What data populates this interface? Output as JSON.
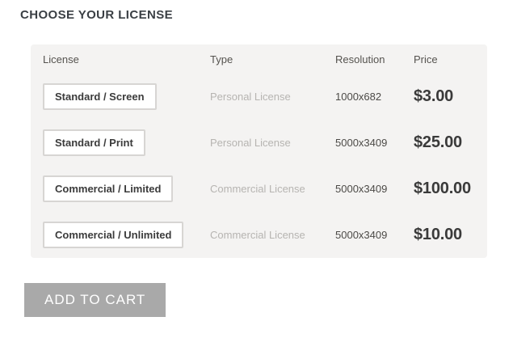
{
  "page": {
    "title": "CHOOSE YOUR LICENSE"
  },
  "table": {
    "headers": {
      "license": "License",
      "type": "Type",
      "resolution": "Resolution",
      "price": "Price"
    },
    "rows": [
      {
        "license": "Standard / Screen",
        "type": "Personal License",
        "resolution": "1000x682",
        "price": "$3.00"
      },
      {
        "license": "Standard / Print",
        "type": "Personal License",
        "resolution": "5000x3409",
        "price": "$25.00"
      },
      {
        "license": "Commercial / Limited",
        "type": "Commercial License",
        "resolution": "5000x3409",
        "price": "$100.00"
      },
      {
        "license": "Commercial / Unlimited",
        "type": "Commercial License",
        "resolution": "5000x3409",
        "price": "$10.00"
      }
    ]
  },
  "actions": {
    "add_to_cart": "ADD TO CART"
  },
  "colors": {
    "panel_bg": "#f4f3f2",
    "button_border": "#d7d5d3",
    "muted_text": "#b6b4b1",
    "dark_text": "#3a3a3a",
    "header_text": "#55534f",
    "cart_bg": "#a9a9a9",
    "cart_text": "#ffffff"
  }
}
